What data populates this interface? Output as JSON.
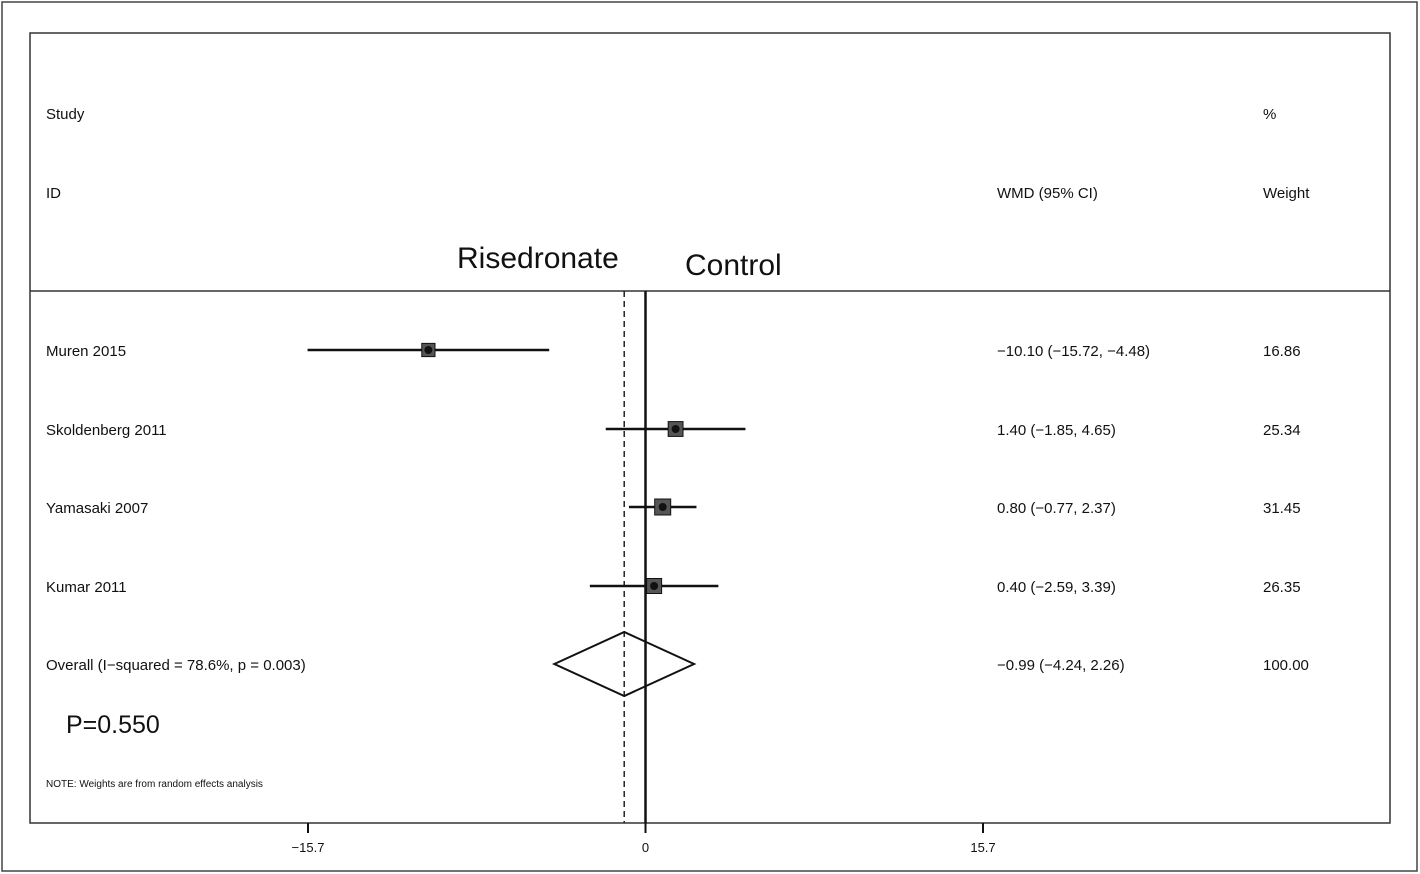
{
  "chart_data": {
    "type": "forest",
    "header": {
      "study_label": "Study",
      "id_label": "ID",
      "effect_label": "WMD (95% CI)",
      "pct_label": "%",
      "weight_label": "Weight"
    },
    "favors_left": "Risedronate",
    "favors_right": "Control",
    "studies": [
      {
        "name": "Muren 2015",
        "wmd": -10.1,
        "lo": -15.72,
        "hi": -4.48,
        "text": "−10.10 (−15.72, −4.48)",
        "weight": 16.86,
        "weight_text": "16.86"
      },
      {
        "name": "Skoldenberg 2011",
        "wmd": 1.4,
        "lo": -1.85,
        "hi": 4.65,
        "text": "1.40 (−1.85, 4.65)",
        "weight": 25.34,
        "weight_text": "25.34"
      },
      {
        "name": "Yamasaki 2007",
        "wmd": 0.8,
        "lo": -0.77,
        "hi": 2.37,
        "text": "0.80 (−0.77, 2.37)",
        "weight": 31.45,
        "weight_text": "31.45"
      },
      {
        "name": "Kumar 2011",
        "wmd": 0.4,
        "lo": -2.59,
        "hi": 3.39,
        "text": "0.40 (−2.59, 3.39)",
        "weight": 26.35,
        "weight_text": "26.35"
      }
    ],
    "overall": {
      "name": "Overall  (I−squared = 78.6%, p = 0.003)",
      "wmd": -0.99,
      "lo": -4.24,
      "hi": 2.26,
      "text": "−0.99 (−4.24, 2.26)",
      "weight_text": "100.00"
    },
    "p_value_label": "P=0.550",
    "note": "NOTE: Weights are from random effects analysis",
    "x_axis": {
      "min": -15.7,
      "max": 15.7,
      "null_value": 0,
      "ticks": [
        -15.7,
        0,
        15.7
      ],
      "tick_labels": [
        "−15.7",
        "0",
        "15.7"
      ]
    },
    "colors": {
      "line": "#111111",
      "marker": "#333333",
      "background": "#ffffff"
    }
  }
}
